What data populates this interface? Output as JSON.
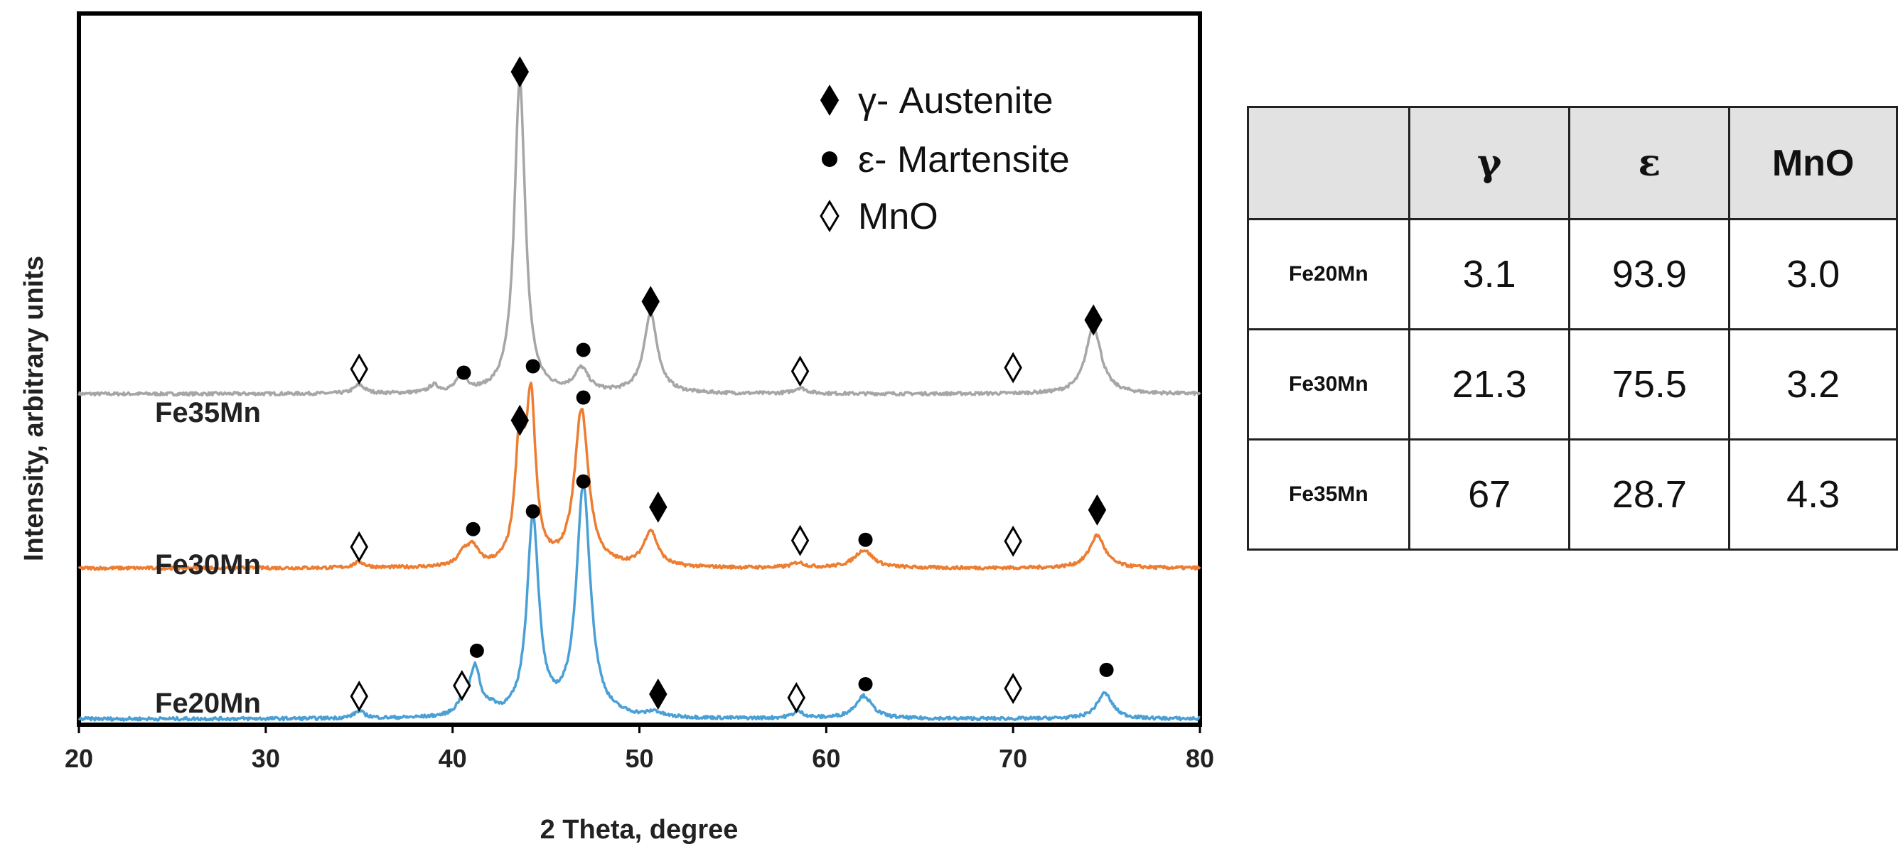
{
  "chart_data": {
    "type": "line",
    "xlabel": "2 Theta, degree",
    "ylabel": "Intensity, arbitrary units",
    "xlim": [
      20,
      80
    ],
    "ylim": [
      0,
      100
    ],
    "xticks": [
      20,
      30,
      40,
      50,
      60,
      70,
      80
    ],
    "ytick_labels": "none",
    "grid": false,
    "legend_position": "top-right",
    "legend": [
      {
        "symbol": "filled-diamond",
        "glyph": "◆",
        "label": "γ- Austenite"
      },
      {
        "symbol": "filled-circle",
        "glyph": "●",
        "label": "ε- Martensite"
      },
      {
        "symbol": "open-diamond",
        "glyph": "◇",
        "label": "MnO"
      }
    ],
    "series": [
      {
        "name": "Fe35Mn",
        "color": "#a6a6a6",
        "baseline": 46.5,
        "peaks": [
          {
            "x": 35.0,
            "h": 1.2,
            "w": 0.35
          },
          {
            "x": 39.0,
            "h": 1.0,
            "w": 0.3
          },
          {
            "x": 40.5,
            "h": 2.2,
            "w": 0.35
          },
          {
            "x": 43.6,
            "h": 44.0,
            "w": 0.35
          },
          {
            "x": 46.9,
            "h": 3.2,
            "w": 0.45
          },
          {
            "x": 50.6,
            "h": 11.0,
            "w": 0.45
          },
          {
            "x": 58.6,
            "h": 0.8,
            "w": 0.4
          },
          {
            "x": 74.3,
            "h": 9.5,
            "w": 0.5
          }
        ],
        "markers": [
          {
            "x": 35.0,
            "y": 50.0,
            "type": "open-diamond"
          },
          {
            "x": 40.6,
            "y": 49.5,
            "type": "filled-circle"
          },
          {
            "x": 44.3,
            "y": 50.4,
            "type": "filled-circle"
          },
          {
            "x": 47.0,
            "y": 52.7,
            "type": "filled-circle"
          },
          {
            "x": 43.6,
            "y": 91.8,
            "type": "filled-diamond"
          },
          {
            "x": 50.6,
            "y": 59.5,
            "type": "filled-diamond"
          },
          {
            "x": 58.6,
            "y": 49.7,
            "type": "open-diamond"
          },
          {
            "x": 70.0,
            "y": 50.2,
            "type": "open-diamond"
          },
          {
            "x": 74.3,
            "y": 56.9,
            "type": "filled-diamond"
          }
        ]
      },
      {
        "name": "Fe30Mn",
        "color": "#ed7d31",
        "baseline": 22.0,
        "peaks": [
          {
            "x": 35.0,
            "h": 0.8,
            "w": 0.35
          },
          {
            "x": 40.6,
            "h": 1.8,
            "w": 0.35
          },
          {
            "x": 41.1,
            "h": 2.5,
            "w": 0.35
          },
          {
            "x": 43.6,
            "h": 17.0,
            "w": 0.3
          },
          {
            "x": 44.2,
            "h": 22.0,
            "w": 0.3
          },
          {
            "x": 46.9,
            "h": 22.0,
            "w": 0.45
          },
          {
            "x": 50.6,
            "h": 5.0,
            "w": 0.45
          },
          {
            "x": 58.5,
            "h": 0.7,
            "w": 0.4
          },
          {
            "x": 62.0,
            "h": 2.5,
            "w": 0.6
          },
          {
            "x": 74.5,
            "h": 4.6,
            "w": 0.5
          }
        ],
        "markers": [
          {
            "x": 35.0,
            "y": 25.0,
            "type": "open-diamond"
          },
          {
            "x": 41.1,
            "y": 27.5,
            "type": "filled-circle"
          },
          {
            "x": 43.6,
            "y": 42.8,
            "type": "filled-diamond"
          },
          {
            "x": 44.3,
            "y": 30.0,
            "type": "filled-circle"
          },
          {
            "x": 47.0,
            "y": 46.0,
            "type": "filled-circle"
          },
          {
            "x": 47.0,
            "y": 34.2,
            "type": "filled-circle"
          },
          {
            "x": 51.0,
            "y": 30.6,
            "type": "filled-diamond"
          },
          {
            "x": 58.6,
            "y": 25.9,
            "type": "open-diamond"
          },
          {
            "x": 62.1,
            "y": 26.0,
            "type": "filled-circle"
          },
          {
            "x": 70.0,
            "y": 25.8,
            "type": "open-diamond"
          },
          {
            "x": 74.5,
            "y": 30.2,
            "type": "filled-diamond"
          }
        ]
      },
      {
        "name": "Fe20Mn",
        "color": "#4aa0d5",
        "baseline": 0.8,
        "peaks": [
          {
            "x": 35.0,
            "h": 1.0,
            "w": 0.35
          },
          {
            "x": 40.5,
            "h": 1.5,
            "w": 0.35
          },
          {
            "x": 41.2,
            "h": 6.8,
            "w": 0.35
          },
          {
            "x": 42.1,
            "h": 0.8,
            "w": 0.3
          },
          {
            "x": 44.3,
            "h": 28.0,
            "w": 0.38
          },
          {
            "x": 47.0,
            "h": 32.5,
            "w": 0.45
          },
          {
            "x": 50.8,
            "h": 0.7,
            "w": 0.4
          },
          {
            "x": 58.5,
            "h": 0.9,
            "w": 0.4
          },
          {
            "x": 62.0,
            "h": 3.2,
            "w": 0.55
          },
          {
            "x": 74.9,
            "h": 3.6,
            "w": 0.5
          }
        ],
        "markers": [
          {
            "x": 35.0,
            "y": 4.0,
            "type": "open-diamond"
          },
          {
            "x": 40.5,
            "y": 5.5,
            "type": "open-diamond"
          },
          {
            "x": 41.3,
            "y": 10.4,
            "type": "filled-circle"
          },
          {
            "x": 51.0,
            "y": 4.3,
            "type": "filled-diamond"
          },
          {
            "x": 58.4,
            "y": 3.8,
            "type": "open-diamond"
          },
          {
            "x": 62.1,
            "y": 5.7,
            "type": "filled-circle"
          },
          {
            "x": 70.0,
            "y": 5.1,
            "type": "open-diamond"
          },
          {
            "x": 75.0,
            "y": 7.7,
            "type": "filled-circle"
          }
        ]
      }
    ]
  },
  "table": {
    "headers": [
      "",
      "γ",
      "ε",
      "MnO"
    ],
    "rows": [
      {
        "label": "Fe20Mn",
        "gamma": "3.1",
        "epsilon": "93.9",
        "mno": "3.0"
      },
      {
        "label": "Fe30Mn",
        "gamma": "21.3",
        "epsilon": "75.5",
        "mno": "3.2"
      },
      {
        "label": "Fe35Mn",
        "gamma": "67",
        "epsilon": "28.7",
        "mno": "4.3"
      }
    ]
  }
}
